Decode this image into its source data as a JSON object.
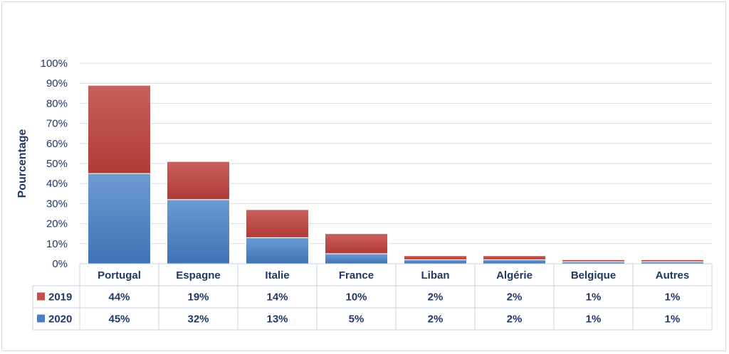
{
  "chart_data": {
    "type": "bar",
    "stacked": true,
    "ylabel": "Pourcentage",
    "ylim": [
      0,
      100
    ],
    "yticks": [
      "0%",
      "10%",
      "20%",
      "30%",
      "40%",
      "50%",
      "60%",
      "70%",
      "80%",
      "90%",
      "100%"
    ],
    "categories": [
      "Portugal",
      "Espagne",
      "Italie",
      "France",
      "Liban",
      "Algérie",
      "Belgique",
      "Autres"
    ],
    "series": [
      {
        "name": "2020",
        "color": "#4a7ebf",
        "values": [
          45,
          32,
          13,
          5,
          2,
          2,
          1,
          1
        ],
        "labels": [
          "45%",
          "32%",
          "13%",
          "5%",
          "2%",
          "2%",
          "1%",
          "1%"
        ]
      },
      {
        "name": "2019",
        "color": "#c0504d",
        "values": [
          44,
          19,
          14,
          10,
          2,
          2,
          1,
          1
        ],
        "labels": [
          "44%",
          "19%",
          "14%",
          "10%",
          "2%",
          "2%",
          "1%",
          "1%"
        ]
      }
    ],
    "grid": true,
    "data_table": true
  }
}
